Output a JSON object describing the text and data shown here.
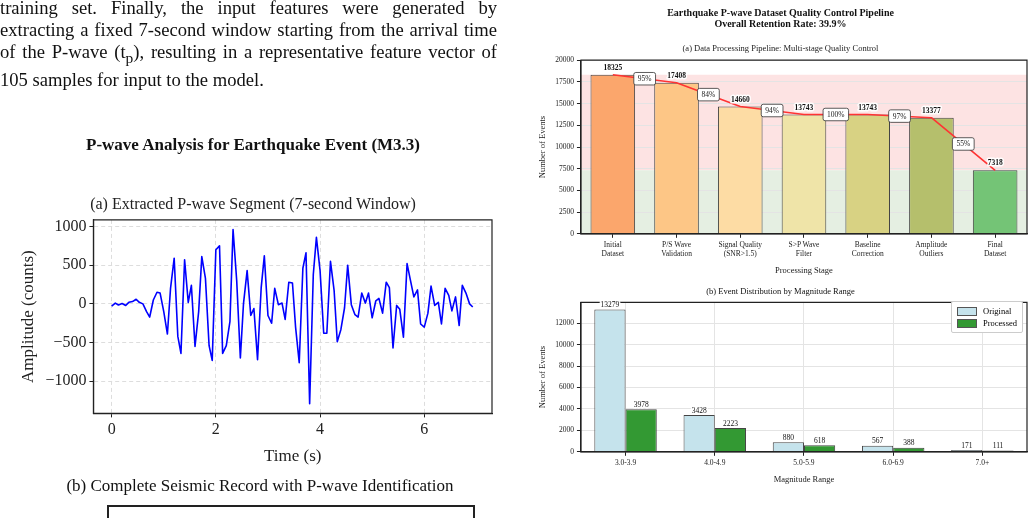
{
  "chart_data": [
    {
      "type": "other",
      "annotations": [
        "training set. Finally, the input features were generated by extracting a fixed 7-second window starting from the arrival time of the P-wave (t$_{p}$), resulting in a representative feature vector of 105 samples for input to the model."
      ]
    },
    {
      "type": "line",
      "title": "P-wave Analysis for Earthquake Event (M3.3)",
      "subtitle": "(a) Extracted P-wave Segment (7-second Window)",
      "xlabel": "Time (s)",
      "ylabel": "Amplitude (counts)",
      "x": [
        0,
        0.07,
        0.13,
        0.2,
        0.27,
        0.33,
        0.4,
        0.47,
        0.53,
        0.6,
        0.67,
        0.73,
        0.8,
        0.87,
        0.93,
        1,
        1.07,
        1.13,
        1.2,
        1.27,
        1.33,
        1.4,
        1.47,
        1.53,
        1.6,
        1.67,
        1.73,
        1.8,
        1.87,
        1.93,
        2,
        2.07,
        2.13,
        2.2,
        2.27,
        2.33,
        2.4,
        2.47,
        2.53,
        2.6,
        2.67,
        2.73,
        2.8,
        2.87,
        2.93,
        3,
        3.07,
        3.13,
        3.2,
        3.27,
        3.33,
        3.4,
        3.47,
        3.53,
        3.6,
        3.67,
        3.73,
        3.8,
        3.87,
        3.93,
        4,
        4.07,
        4.13,
        4.2,
        4.27,
        4.33,
        4.4,
        4.47,
        4.53,
        4.6,
        4.67,
        4.73,
        4.8,
        4.87,
        4.93,
        5,
        5.07,
        5.13,
        5.2,
        5.27,
        5.33,
        5.4,
        5.47,
        5.53,
        5.6,
        5.67,
        5.73,
        5.8,
        5.87,
        5.93,
        6,
        6.07,
        6.13,
        6.2,
        6.27,
        6.33,
        6.4,
        6.47,
        6.53,
        6.6,
        6.67,
        6.73,
        6.8,
        6.87,
        6.93
      ],
      "values": [
        -30,
        10,
        -15,
        5,
        -20,
        20,
        30,
        60,
        20,
        0,
        -100,
        -170,
        50,
        150,
        140,
        -100,
        -390,
        200,
        590,
        -420,
        -640,
        570,
        20,
        240,
        -550,
        -100,
        610,
        330,
        -540,
        -730,
        700,
        750,
        -640,
        -540,
        -230,
        960,
        300,
        -700,
        0,
        430,
        -150,
        -60,
        -720,
        210,
        620,
        -150,
        -250,
        200,
        -10,
        10,
        -200,
        280,
        270,
        -300,
        -760,
        460,
        660,
        -1290,
        380,
        860,
        430,
        -380,
        -380,
        550,
        170,
        -490,
        -330,
        -50,
        500,
        -10,
        -140,
        -170,
        140,
        10,
        140,
        -180,
        40,
        70,
        -120,
        280,
        210,
        -570,
        -20,
        -70,
        -430,
        520,
        320,
        90,
        180,
        -260,
        -300,
        -120,
        230,
        -20,
        20,
        -260,
        200,
        110,
        -90,
        90,
        -280,
        240,
        140,
        0,
        -40
      ],
      "color": "#0000ff",
      "xlim": [
        -0.35,
        7.3
      ],
      "xticks": [
        0,
        2,
        4,
        6
      ],
      "ylim": [
        -1415,
        1085
      ],
      "yticks": [
        {
          "value": -1000,
          "label": "−1000"
        },
        {
          "value": -500,
          "label": "−500"
        },
        0,
        500,
        1000
      ],
      "grid": true,
      "line_style": "solid"
    },
    {
      "type": "other",
      "title": "(b) Complete Seismic Record with P-wave Identification"
    },
    {
      "type": "bar",
      "title": "Earthquake P-wave Dataset Quality Control Pipeline\nOverall Retention Rate: 39.9%",
      "subtitle": "(a) Data Processing Pipeline: Multi-stage Quality Control",
      "xlabel": "Processing Stage",
      "ylabel": "Number of Events",
      "categories": [
        "Initial Dataset",
        "P/S Wave Validation",
        "Signal Quality (SNR>1.5)",
        "S>P Wave Filter",
        "Baseline Correction",
        "Amplitude Outliers",
        "Final Dataset"
      ],
      "series": [
        {
          "type": "bar",
          "values": [
            18325,
            17408,
            14660,
            13743,
            13743,
            13377,
            7318
          ],
          "value_labels": [
            "18325",
            "17408",
            "14660",
            "13743",
            "13743",
            "13377",
            "7318"
          ],
          "colors": [
            "#fba66c",
            "#fdc686",
            "#fddca4",
            "#efe4a8",
            "#d8d283",
            "#b5bf6c",
            "#74c476"
          ]
        },
        {
          "type": "line",
          "values": [
            18325,
            17408,
            14660,
            13743,
            13743,
            13377,
            7318
          ],
          "color": "#ff3333"
        }
      ],
      "annotations": [
        "95%",
        "84%",
        "94%",
        "100%",
        "97%",
        "55%"
      ],
      "bands": [
        {
          "axis": "y",
          "from": 7318,
          "to": 18325,
          "color": "#fde3e3"
        },
        {
          "axis": "y",
          "from": 0,
          "to": 7318,
          "color": "#e5efe2"
        }
      ],
      "ylim": [
        0,
        20000
      ],
      "yticks": [
        0,
        2500,
        5000,
        7500,
        10000,
        12500,
        15000,
        17500,
        20000
      ],
      "grid": "y"
    },
    {
      "type": "bar",
      "title": "(b) Event Distribution by Magnitude Range",
      "xlabel": "Magnitude Range",
      "ylabel": "Number of Events",
      "categories": [
        "3.0-3.9",
        "4.0-4.9",
        "5.0-5.9",
        "6.0-6.9",
        "7.0+"
      ],
      "series": [
        {
          "name": "Original",
          "color": "#c5e3ec",
          "values": [
            13279,
            3428,
            880,
            567,
            171
          ]
        },
        {
          "name": "Processed",
          "color": "#339933",
          "values": [
            3978,
            2223,
            618,
            388,
            111
          ]
        }
      ],
      "ylim": [
        0,
        13950
      ],
      "yticks": [
        0,
        2000,
        4000,
        6000,
        8000,
        10000,
        12000
      ],
      "grid": true,
      "legend": "top right",
      "data_labels": true
    }
  ]
}
